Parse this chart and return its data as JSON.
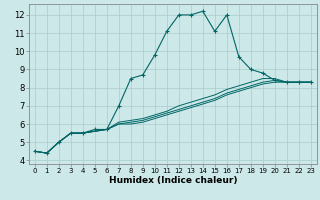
{
  "xlabel": "Humidex (Indice chaleur)",
  "background_color": "#cde8e8",
  "grid_color": "#aacccc",
  "line_color": "#006666",
  "xlim": [
    -0.5,
    23.5
  ],
  "ylim": [
    3.8,
    12.6
  ],
  "xticks": [
    0,
    1,
    2,
    3,
    4,
    5,
    6,
    7,
    8,
    9,
    10,
    11,
    12,
    13,
    14,
    15,
    16,
    17,
    18,
    19,
    20,
    21,
    22,
    23
  ],
  "yticks": [
    4,
    5,
    6,
    7,
    8,
    9,
    10,
    11,
    12
  ],
  "series_main": [
    4.5,
    4.4,
    5.0,
    5.5,
    5.5,
    5.7,
    5.7,
    7.0,
    8.5,
    8.7,
    9.8,
    11.1,
    12.0,
    12.0,
    12.2,
    11.1,
    12.0,
    9.7,
    9.0,
    8.8,
    8.4,
    8.3,
    8.3,
    8.3
  ],
  "series_flat1": [
    4.5,
    4.4,
    5.0,
    5.5,
    5.5,
    5.6,
    5.7,
    6.1,
    6.2,
    6.3,
    6.5,
    6.7,
    7.0,
    7.2,
    7.4,
    7.6,
    7.9,
    8.1,
    8.3,
    8.5,
    8.5,
    8.3,
    8.3,
    8.3
  ],
  "series_flat2": [
    4.5,
    4.4,
    5.0,
    5.5,
    5.5,
    5.6,
    5.7,
    6.0,
    6.1,
    6.2,
    6.4,
    6.6,
    6.8,
    7.0,
    7.2,
    7.4,
    7.7,
    7.9,
    8.1,
    8.3,
    8.4,
    8.3,
    8.3,
    8.3
  ],
  "series_flat3": [
    4.5,
    4.4,
    5.0,
    5.5,
    5.5,
    5.6,
    5.7,
    6.0,
    6.0,
    6.1,
    6.3,
    6.5,
    6.7,
    6.9,
    7.1,
    7.3,
    7.6,
    7.8,
    8.0,
    8.2,
    8.3,
    8.3,
    8.3,
    8.3
  ]
}
